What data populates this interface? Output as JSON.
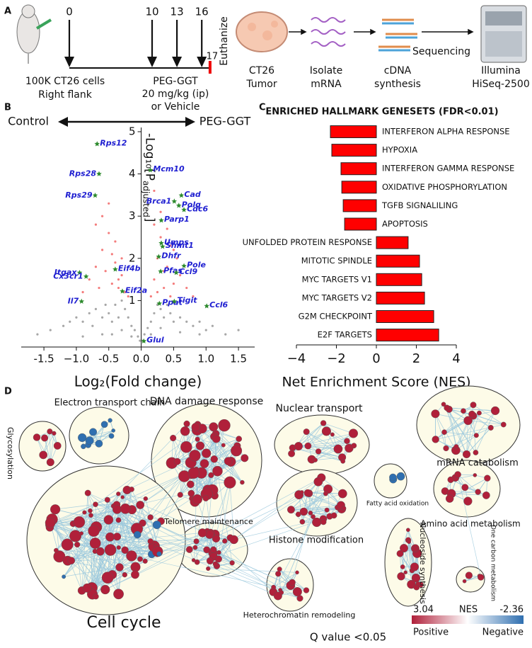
{
  "panel_labels": [
    "A",
    "B",
    "C",
    "D"
  ],
  "panel_a": {
    "days": [
      "0",
      "10",
      "13",
      "16",
      "17"
    ],
    "injection_label": [
      "100K CT26 cells",
      "Right flank"
    ],
    "treatment_label": [
      "PEG-GGT",
      "20 mg/kg (ip)",
      "or Vehicle"
    ],
    "end_label": "Euthanize",
    "steps": [
      {
        "label": [
          "CT26",
          "Tumor"
        ]
      },
      {
        "label": [
          "Isolate",
          "mRNA"
        ]
      },
      {
        "label": [
          "cDNA",
          "synthesis"
        ]
      },
      {
        "label": [
          "Illumina",
          "HiSeq-2500"
        ]
      }
    ],
    "sequencing_label": "Sequencing"
  },
  "chart_data": [
    {
      "type": "scatter",
      "x_label": "Log₂(Fold change)",
      "y_label": "-Log₁₀[P",
      "y_label_sub": "adjusted",
      "y_label_end": "]",
      "direction_labels": [
        "Control",
        "PEG-GGT"
      ],
      "xlim": [
        -1.85,
        1.75
      ],
      "ylim": [
        -0.1,
        5.1
      ],
      "xticks": [
        -1.5,
        {
          "value": -1,
          "label": "−1.0"
        },
        -0.5,
        {
          "value": 0,
          "label": "0.0"
        },
        0.5,
        {
          "value": 1,
          "label": "1.0"
        },
        1.5
      ],
      "yticks": [
        1,
        2,
        3,
        4,
        5
      ],
      "series": [
        {
          "color": "#a6a6a6",
          "x": [
            -1.6,
            -1.4,
            -1.2,
            -1.1,
            -1.0,
            -0.9,
            -0.8,
            -0.75,
            -0.7,
            -0.6,
            -0.55,
            -0.5,
            -0.45,
            -0.4,
            -0.35,
            -0.3,
            -0.25,
            -0.2,
            -0.15,
            -0.1,
            -0.05,
            -0.02,
            0.02,
            0.05,
            0.1,
            0.15,
            0.2,
            0.25,
            0.3,
            0.35,
            0.4,
            0.45,
            0.5,
            0.6,
            0.7,
            0.8,
            0.9,
            1.0,
            1.1,
            1.3,
            1.5,
            -0.6,
            -0.3,
            -0.15,
            0.15,
            0.3,
            0.6,
            -0.9,
            0.9,
            -0.45
          ],
          "values": [
            0.2,
            0.3,
            0.4,
            0.5,
            0.6,
            0.5,
            0.7,
            0.4,
            0.8,
            0.6,
            0.9,
            0.7,
            0.5,
            0.9,
            0.6,
            1.0,
            0.8,
            0.6,
            0.4,
            0.3,
            0.15,
            0.05,
            0.05,
            0.2,
            0.35,
            0.5,
            0.7,
            0.9,
            0.8,
            0.6,
            0.9,
            0.7,
            0.5,
            0.6,
            0.5,
            0.4,
            0.5,
            0.3,
            0.4,
            0.2,
            0.3,
            0.2,
            0.3,
            0.15,
            0.2,
            0.35,
            0.25,
            0.15,
            0.2,
            0.2
          ]
        },
        {
          "color": "#f47c7c",
          "x": [
            -0.9,
            -0.8,
            -0.7,
            -0.6,
            -0.5,
            -0.45,
            -0.4,
            -0.35,
            -0.3,
            -0.25,
            -0.2,
            -0.6,
            -0.5,
            -0.4,
            -0.3,
            -0.55,
            -0.7,
            -0.35,
            -0.65,
            -0.45,
            0.15,
            0.2,
            0.25,
            0.3,
            0.35,
            0.4,
            0.45,
            0.5,
            0.55,
            0.6,
            0.2,
            0.3,
            0.4,
            0.5,
            0.25,
            0.35,
            0.45,
            0.7,
            0.8,
            0.2
          ],
          "values": [
            1.2,
            1.5,
            1.8,
            2.2,
            2.6,
            1.4,
            1.9,
            1.3,
            1.6,
            1.2,
            1.1,
            3.0,
            3.3,
            2.4,
            2.0,
            1.7,
            2.8,
            1.5,
            1.3,
            2.1,
            1.1,
            1.5,
            2.0,
            2.5,
            1.3,
            1.8,
            2.3,
            1.4,
            2.0,
            1.6,
            2.8,
            3.1,
            2.7,
            2.2,
            1.2,
            1.7,
            1.1,
            1.3,
            1.1,
            3.6
          ]
        },
        {
          "color": "#2d8a2d",
          "marker": "star",
          "label_color": "#1f1fd1",
          "labels": [
            "Rps12",
            "Rps28",
            "Rps29",
            "Mcm10",
            "Cad",
            "Polq",
            "Brca1",
            "Cdc6",
            "Parp1",
            "Umps",
            "Shmt1",
            "Dhfr",
            "Pole",
            "Pfas",
            "Ccl9",
            "Itgax",
            "Cx3cr1",
            "Eif4b",
            "Eif2a",
            "Il7",
            "Ppat",
            "Tigit",
            "Ccl6",
            "Glul"
          ],
          "x": [
            -0.68,
            -0.65,
            -0.71,
            0.14,
            0.62,
            0.58,
            0.51,
            0.66,
            0.31,
            0.31,
            0.33,
            0.27,
            0.66,
            0.3,
            0.54,
            -0.95,
            -0.85,
            -0.4,
            -0.29,
            -0.92,
            0.28,
            0.51,
            1.01,
            0.04
          ],
          "values": [
            4.71,
            4.0,
            3.49,
            4.09,
            3.49,
            3.25,
            3.35,
            3.15,
            2.9,
            2.36,
            2.28,
            2.04,
            1.82,
            1.69,
            1.66,
            1.66,
            1.57,
            1.74,
            1.22,
            0.98,
            0.93,
            0.98,
            0.87,
            0.04
          ]
        }
      ]
    },
    {
      "type": "bar",
      "orientation": "horizontal",
      "title": "ENRICHED HALLMARK GENESETS (FDR<0.01)",
      "categories": [
        "INTERFERON ALPHA RESPONSE",
        "HYPOXIA",
        "INTERFERON GAMMA RESPONSE",
        "OXIDATIVE PHOSPHORYLATION",
        "TGFB SIGNALILING",
        "APOPTOSIS",
        "UNFOLDED PROTEIN RESPONSE",
        "MITOTIC SPINDLE",
        "MYC TARGETS V1",
        "MYC TARGETS V2",
        "G2M CHECKPOINT",
        "E2F TARGETS"
      ],
      "values": [
        -2.3,
        -2.23,
        -1.77,
        -1.73,
        -1.66,
        -1.59,
        1.59,
        2.16,
        2.27,
        2.41,
        2.87,
        3.12
      ],
      "color": "#ff0000",
      "x_label": "Net Enrichment Score (NES)",
      "xlim": [
        -4,
        4
      ],
      "xticks": [
        {
          "value": -4,
          "label": "−4"
        },
        {
          "value": -2,
          "label": "−2"
        },
        0,
        2,
        4
      ]
    }
  ],
  "panel_d": {
    "clusters": [
      {
        "label": "Glycosylation",
        "color": "#b0203a"
      },
      {
        "label": "Electron transport chain",
        "color": "#2f6fb0"
      },
      {
        "label": "DNA damage response",
        "color": "#b0203a"
      },
      {
        "label": "Nuclear transport",
        "color": "#b0203a"
      },
      {
        "label": "mRNA catabolism",
        "color": "#b0203a"
      },
      {
        "label": "Fatty acid oxidation",
        "color": "#2f6fb0"
      },
      {
        "label": "Telomere maintenance",
        "color": "#b0203a"
      },
      {
        "label": "Histone modification",
        "color": "#b0203a"
      },
      {
        "label": "Amino acid metabolism",
        "color": "#b0203a"
      },
      {
        "label": "Cell cycle",
        "color": "#b0203a"
      },
      {
        "label": "Nucleoside synthesis",
        "color": "#b0203a"
      },
      {
        "label": "One carbon metabolism",
        "color": "#b0203a"
      },
      {
        "label": "Heterochromatin remodeling",
        "color": "#b0203a"
      }
    ],
    "legend": {
      "title": "Q value <0.05",
      "scale_label": "NES",
      "max_label": "3.04",
      "min_label": "-2.36",
      "positive_label": "Positive",
      "negative_label": "Negative",
      "colors": [
        "#b0203a",
        "#ffffff",
        "#2f6fb0"
      ]
    }
  }
}
